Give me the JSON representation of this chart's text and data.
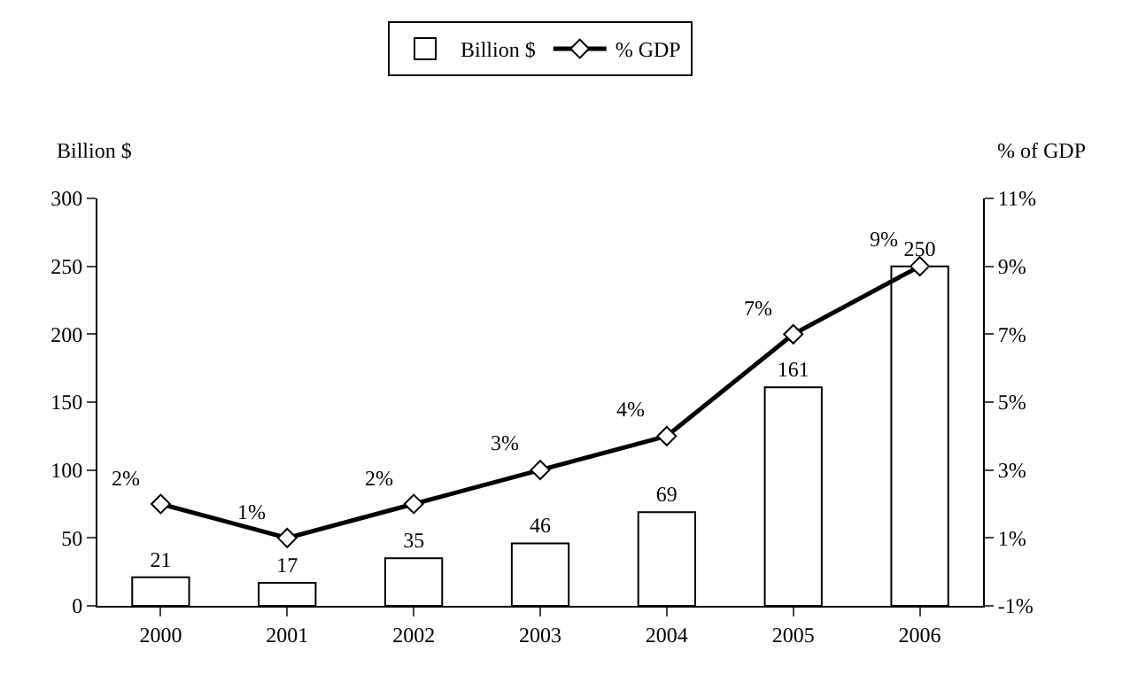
{
  "chart_data": {
    "type": "bar",
    "ylabel": "Billion $",
    "y2label": "% of GDP",
    "categories": [
      "2000",
      "2001",
      "2002",
      "2003",
      "2004",
      "2005",
      "2006"
    ],
    "series": [
      {
        "name": "Billion $",
        "color": "#ffffff",
        "values": [
          21,
          17,
          35,
          46,
          69,
          161,
          250
        ],
        "value_labels": [
          "21",
          "17",
          "35",
          "46",
          "69",
          "161",
          "250"
        ]
      },
      {
        "name": "% GDP",
        "type": "line",
        "axis": "y2",
        "color": "#000000",
        "marker": "diamond",
        "values": [
          2,
          1,
          2,
          3,
          4,
          7,
          9
        ],
        "value_labels": [
          "2%",
          "1%",
          "2%",
          "3%",
          "4%",
          "7%",
          "9%"
        ]
      }
    ],
    "ylim": [
      0,
      300
    ],
    "yticks": [
      0,
      50,
      100,
      150,
      200,
      250,
      300
    ],
    "y2lim": [
      -1,
      11
    ],
    "y2ticks": [
      {
        "value": -1,
        "label": "-1%"
      },
      {
        "value": 1,
        "label": "1%"
      },
      {
        "value": 3,
        "label": "3%"
      },
      {
        "value": 5,
        "label": "5%"
      },
      {
        "value": 7,
        "label": "7%"
      },
      {
        "value": 9,
        "label": "9%"
      },
      {
        "value": 11,
        "label": "11%"
      }
    ],
    "legend": "top"
  }
}
